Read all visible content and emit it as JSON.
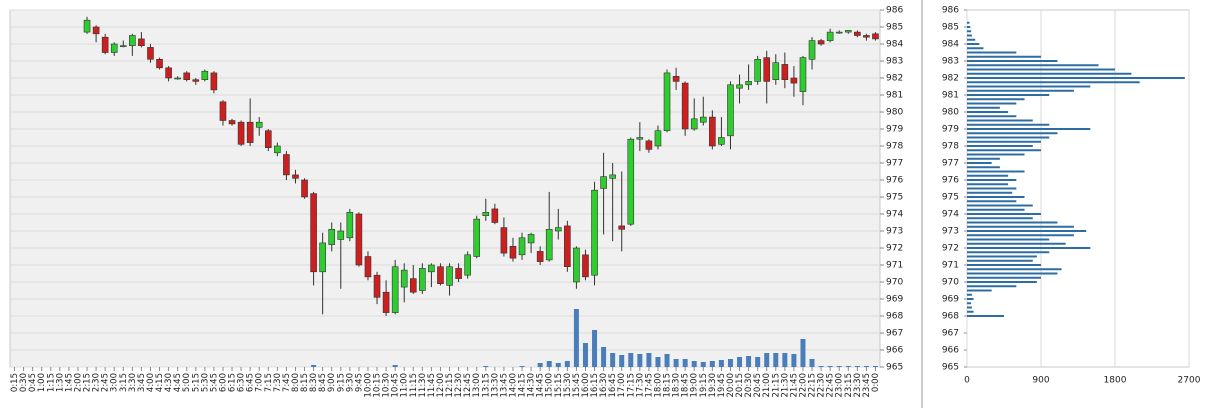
{
  "chart_data": [
    {
      "type": "candlestick",
      "categories": [
        "0:15",
        "0:30",
        "0:45",
        "1:00",
        "1:15",
        "1:30",
        "1:45",
        "2:00",
        "2:15",
        "2:30",
        "2:45",
        "3:00",
        "3:15",
        "3:30",
        "3:45",
        "4:00",
        "4:15",
        "4:30",
        "4:45",
        "5:00",
        "5:15",
        "5:30",
        "5:45",
        "6:00",
        "6:15",
        "6:30",
        "6:45",
        "7:00",
        "7:15",
        "7:30",
        "7:45",
        "8:00",
        "8:15",
        "8:30",
        "8:45",
        "9:00",
        "9:15",
        "9:30",
        "9:45",
        "10:00",
        "10:15",
        "10:30",
        "10:45",
        "11:00",
        "11:15",
        "11:30",
        "11:45",
        "12:00",
        "12:15",
        "12:30",
        "12:45",
        "13:00",
        "13:15",
        "13:30",
        "13:45",
        "14:00",
        "14:15",
        "14:30",
        "14:45",
        "15:00",
        "15:15",
        "15:30",
        "15:45",
        "16:00",
        "16:15",
        "16:30",
        "16:45",
        "17:00",
        "17:15",
        "17:30",
        "17:45",
        "18:00",
        "18:15",
        "18:30",
        "18:45",
        "19:00",
        "19:15",
        "19:30",
        "19:45",
        "20:00",
        "20:15",
        "20:30",
        "20:45",
        "21:00",
        "21:15",
        "21:30",
        "21:45",
        "22:00",
        "22:15",
        "22:30",
        "22:45",
        "23:00",
        "23:15",
        "23:30",
        "23:45",
        "0:00"
      ],
      "open": [
        null,
        null,
        null,
        null,
        null,
        null,
        null,
        null,
        984.7,
        985.0,
        984.4,
        983.5,
        983.9,
        983.9,
        984.3,
        983.8,
        983.1,
        982.6,
        982.0,
        982.3,
        981.9,
        981.9,
        982.3,
        980.6,
        979.5,
        979.4,
        979.4,
        979.1,
        978.9,
        977.6,
        977.5,
        976.3,
        976.0,
        975.2,
        970.6,
        972.2,
        972.5,
        972.6,
        974.0,
        971.5,
        970.4,
        969.4,
        968.2,
        969.7,
        970.2,
        969.5,
        970.6,
        970.9,
        969.8,
        970.8,
        970.4,
        971.5,
        973.9,
        974.3,
        973.2,
        972.1,
        971.6,
        972.3,
        971.8,
        971.3,
        973.0,
        973.3,
        970.0,
        971.6,
        970.4,
        975.5,
        976.1,
        973.3,
        973.4,
        978.4,
        978.3,
        978.0,
        978.9,
        982.1,
        981.7,
        979.0,
        979.4,
        979.7,
        978.1,
        978.6,
        981.4,
        981.6,
        981.8,
        983.2,
        981.9,
        982.8,
        982.0,
        981.2,
        983.1,
        984.2,
        984.2,
        984.7,
        984.7,
        984.7,
        984.5,
        984.6
      ],
      "high": [
        null,
        null,
        null,
        null,
        null,
        null,
        null,
        null,
        985.6,
        985.1,
        984.6,
        984.1,
        984.2,
        984.6,
        984.7,
        984.0,
        983.2,
        982.7,
        982.1,
        982.4,
        982.0,
        982.5,
        982.4,
        980.7,
        979.6,
        979.5,
        980.8,
        979.7,
        979.0,
        978.2,
        977.7,
        976.6,
        976.1,
        975.3,
        972.9,
        973.5,
        973.5,
        974.3,
        974.1,
        971.8,
        970.6,
        970.1,
        971.3,
        971.1,
        971.0,
        971.1,
        971.1,
        971.1,
        971.1,
        971.1,
        971.8,
        973.9,
        974.9,
        974.6,
        973.8,
        972.6,
        972.9,
        972.9,
        972.1,
        975.3,
        974.3,
        973.6,
        972.1,
        971.9,
        975.9,
        977.6,
        977.0,
        976.5,
        978.5,
        979.4,
        978.4,
        979.2,
        982.5,
        982.6,
        981.8,
        980.8,
        980.9,
        980.1,
        979.7,
        981.8,
        982.2,
        982.8,
        983.3,
        983.6,
        983.4,
        983.5,
        982.7,
        983.3,
        984.4,
        984.3,
        984.9,
        984.8,
        984.8,
        984.8,
        984.6,
        984.7
      ],
      "low": [
        null,
        null,
        null,
        null,
        null,
        null,
        null,
        null,
        984.6,
        984.1,
        983.4,
        983.3,
        983.8,
        983.3,
        983.8,
        982.9,
        982.5,
        981.8,
        981.9,
        981.8,
        981.6,
        981.8,
        981.1,
        979.2,
        979.2,
        978.0,
        978.0,
        978.6,
        977.7,
        977.4,
        976.0,
        975.8,
        974.9,
        969.8,
        968.1,
        971.8,
        969.6,
        972.4,
        970.9,
        970.1,
        968.7,
        968.0,
        968.1,
        968.8,
        969.3,
        969.3,
        969.7,
        969.8,
        969.2,
        970.0,
        970.2,
        971.4,
        973.6,
        973.4,
        971.5,
        971.2,
        971.3,
        971.7,
        971.0,
        971.2,
        972.5,
        970.6,
        969.6,
        970.1,
        969.8,
        972.8,
        972.4,
        971.8,
        973.3,
        977.7,
        977.6,
        977.8,
        978.8,
        981.3,
        978.6,
        978.9,
        979.2,
        977.8,
        978.0,
        977.8,
        980.5,
        981.3,
        981.6,
        980.5,
        981.6,
        981.4,
        980.9,
        980.4,
        982.5,
        983.9,
        984.1,
        984.6,
        984.6,
        984.4,
        984.2,
        984.2
      ],
      "close": [
        null,
        null,
        null,
        null,
        null,
        null,
        null,
        null,
        985.4,
        984.6,
        983.5,
        984.0,
        983.9,
        984.5,
        983.9,
        983.1,
        982.6,
        982.0,
        982.0,
        981.9,
        981.8,
        982.4,
        981.3,
        979.5,
        979.3,
        978.1,
        978.2,
        979.4,
        977.9,
        978.0,
        976.3,
        976.1,
        975.0,
        970.6,
        972.3,
        973.1,
        973.0,
        974.1,
        971.0,
        970.3,
        969.1,
        968.2,
        970.9,
        970.7,
        969.4,
        970.8,
        971.0,
        969.9,
        970.9,
        970.2,
        971.6,
        973.7,
        974.1,
        973.5,
        971.7,
        971.4,
        972.6,
        972.8,
        971.2,
        973.1,
        973.2,
        970.9,
        972.0,
        970.3,
        975.4,
        976.2,
        976.3,
        973.1,
        978.4,
        978.5,
        977.8,
        978.9,
        982.3,
        981.8,
        979.0,
        979.6,
        979.7,
        978.0,
        978.5,
        981.6,
        981.6,
        981.8,
        983.1,
        981.8,
        982.9,
        981.9,
        981.7,
        983.2,
        984.2,
        984.0,
        984.7,
        984.7,
        984.8,
        984.5,
        984.4,
        984.3
      ],
      "volume": [
        null,
        null,
        null,
        null,
        null,
        null,
        null,
        null,
        0,
        0,
        0,
        0,
        0,
        0,
        0,
        0,
        0,
        0,
        0,
        0,
        0,
        0,
        0,
        0,
        0,
        0,
        0,
        0,
        0,
        0,
        0,
        0,
        0,
        2,
        0,
        0,
        0,
        0,
        0,
        0,
        0,
        0,
        2,
        0,
        0,
        0,
        0,
        0,
        0,
        0,
        0,
        0,
        1,
        0,
        0,
        0,
        1,
        0,
        4,
        6,
        4,
        6,
        58,
        24,
        37,
        20,
        14,
        12,
        14,
        13,
        14,
        10,
        13,
        8,
        8,
        6,
        5,
        6,
        7,
        8,
        10,
        11,
        10,
        14,
        14,
        14,
        13,
        28,
        8,
        1,
        1,
        1,
        1,
        1,
        1,
        1
      ],
      "up_color": "#2ecc2e",
      "down_color": "#cc1f1f",
      "volume_color": "#4a7ebb",
      "ylim": [
        965,
        986
      ],
      "yticks": [
        965,
        966,
        967,
        968,
        969,
        970,
        971,
        972,
        973,
        974,
        975,
        976,
        977,
        978,
        979,
        980,
        981,
        982,
        983,
        984,
        985,
        986
      ],
      "grid": true
    },
    {
      "type": "hbar",
      "y": [
        968.0,
        968.25,
        968.5,
        968.75,
        969.0,
        969.25,
        969.5,
        969.75,
        970.0,
        970.25,
        970.5,
        970.75,
        971.0,
        971.25,
        971.5,
        971.75,
        972.0,
        972.25,
        972.5,
        972.75,
        973.0,
        973.25,
        973.5,
        973.75,
        974.0,
        974.25,
        974.5,
        974.75,
        975.0,
        975.25,
        975.5,
        975.75,
        976.0,
        976.25,
        976.5,
        976.75,
        977.0,
        977.25,
        977.5,
        977.75,
        978.0,
        978.25,
        978.5,
        978.75,
        979.0,
        979.25,
        979.5,
        979.75,
        980.0,
        980.25,
        980.5,
        980.75,
        981.0,
        981.25,
        981.5,
        981.75,
        982.0,
        982.25,
        982.5,
        982.75,
        983.0,
        983.25,
        983.5,
        983.75,
        984.0,
        984.25,
        984.5,
        984.75,
        985.0,
        985.25
      ],
      "values": [
        450,
        80,
        60,
        50,
        80,
        60,
        300,
        600,
        850,
        900,
        1100,
        1150,
        900,
        800,
        850,
        1000,
        1500,
        1200,
        1000,
        1300,
        1450,
        1300,
        1100,
        800,
        900,
        700,
        800,
        600,
        700,
        550,
        600,
        500,
        600,
        500,
        700,
        400,
        300,
        400,
        700,
        900,
        800,
        900,
        1000,
        1100,
        1500,
        1000,
        800,
        600,
        500,
        400,
        600,
        700,
        1000,
        1300,
        1500,
        2100,
        2650,
        2000,
        1800,
        1600,
        1100,
        900,
        600,
        200,
        150,
        100,
        60,
        50,
        40,
        30
      ],
      "color": "#2e6da4",
      "xlim": [
        0,
        2700
      ],
      "xticks": [
        0,
        900,
        1800,
        2700
      ],
      "ylim": [
        965,
        986
      ],
      "yticks": [
        965,
        966,
        967,
        968,
        969,
        970,
        971,
        972,
        973,
        974,
        975,
        976,
        977,
        978,
        979,
        980,
        981,
        982,
        983,
        984,
        985,
        986
      ],
      "grid": true
    }
  ]
}
